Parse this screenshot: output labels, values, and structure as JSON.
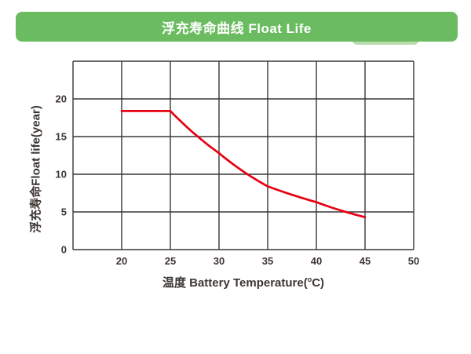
{
  "header": {
    "title": "浮充寿命曲线 Float Life",
    "banner_color": "#6bbc61",
    "accent_color": "#b7dcad"
  },
  "chart_data": {
    "type": "line",
    "title": "浮充寿命曲线 Float Life",
    "series": [
      {
        "name": "Float life",
        "x": [
          20,
          25,
          30,
          35,
          40,
          45
        ],
        "y": [
          18.4,
          18.4,
          12.8,
          8.4,
          6.3,
          4.3
        ]
      }
    ],
    "xlabel_prefix": "温度 Battery Temperature(",
    "xlabel_sup": "o",
    "xlabel_suffix": "C)",
    "ylabel": "浮充寿命Float life(year)",
    "xlim": [
      15,
      50
    ],
    "ylim": [
      0,
      25
    ],
    "x_ticks": [
      20,
      25,
      30,
      35,
      40,
      45,
      50
    ],
    "y_ticks": [
      0,
      5,
      10,
      15,
      20
    ],
    "grid": true,
    "grid_step": 5,
    "legend": "none",
    "line_color": "#e60012",
    "grid_color": "#3c3633",
    "text_color": "#3c3633"
  }
}
